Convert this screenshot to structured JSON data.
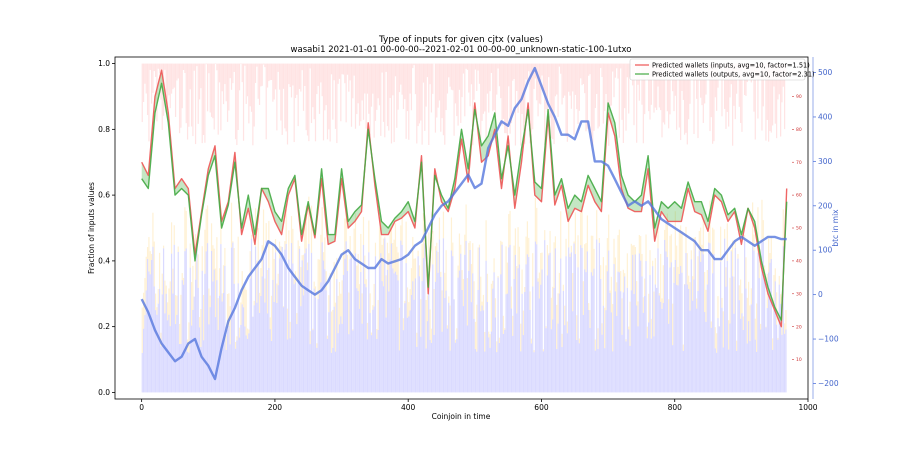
{
  "chart_data": {
    "type": "line",
    "title": "Type of inputs for given cjtx (values)",
    "subtitle": "wasabi1 2021-01-01 00-00-00--2021-02-01 00-00-00_unknown-static-100-1utxo",
    "xlabel": "Coinjoin in time",
    "ylabel": "Fraction of inputs values",
    "y2label": "btc in mix",
    "xlim": [
      -40,
      1000
    ],
    "ylim": [
      -0.02,
      1.02
    ],
    "y2lim": [
      -235,
      535
    ],
    "y3lim": [
      0,
      100
    ],
    "x_ticks": [
      0,
      200,
      400,
      600,
      800,
      1000
    ],
    "y_ticks": [
      0.0,
      0.2,
      0.4,
      0.6,
      0.8,
      1.0
    ],
    "y2_ticks": [
      -200,
      -100,
      0,
      100,
      200,
      300,
      400,
      500
    ],
    "y3_ticks": [
      10,
      20,
      30,
      40,
      50,
      60,
      70,
      80,
      90
    ],
    "legend_position": "top-right",
    "legend": [
      {
        "label": "Predicted wallets (inputs, avg=10, factor=1.51)",
        "color": "#ee5555"
      },
      {
        "label": "Predicted wallets (outputs, avg=10, factor=2.31)",
        "color": "#44aa44"
      }
    ],
    "series": [
      {
        "name": "Predicted wallets (inputs, avg=10, factor=1.51)",
        "axis": "right-inner",
        "color": "#ee5555",
        "x": [
          0,
          10,
          20,
          30,
          40,
          50,
          60,
          70,
          80,
          90,
          100,
          110,
          120,
          130,
          140,
          150,
          160,
          170,
          180,
          190,
          200,
          210,
          220,
          230,
          240,
          250,
          260,
          270,
          280,
          290,
          300,
          310,
          320,
          330,
          340,
          350,
          360,
          370,
          380,
          390,
          400,
          410,
          420,
          430,
          440,
          450,
          460,
          470,
          480,
          490,
          500,
          510,
          520,
          530,
          540,
          550,
          560,
          570,
          580,
          590,
          600,
          610,
          620,
          630,
          640,
          650,
          660,
          670,
          680,
          690,
          700,
          710,
          720,
          730,
          740,
          750,
          760,
          770,
          780,
          790,
          800,
          810,
          820,
          830,
          840,
          850,
          860,
          870,
          880,
          890,
          900,
          910,
          920,
          930,
          940,
          950,
          960,
          968
        ],
        "values": [
          70,
          66,
          90,
          98,
          85,
          62,
          65,
          62,
          42,
          55,
          68,
          75,
          52,
          58,
          73,
          48,
          56,
          45,
          62,
          58,
          52,
          48,
          60,
          65,
          46,
          57,
          47,
          65,
          45,
          46,
          65,
          50,
          52,
          55,
          82,
          63,
          48,
          48,
          52,
          53,
          55,
          50,
          72,
          30,
          68,
          58,
          55,
          62,
          77,
          64,
          88,
          70,
          72,
          80,
          62,
          78,
          56,
          70,
          88,
          60,
          58,
          84,
          57,
          63,
          52,
          56,
          55,
          63,
          58,
          55,
          85,
          78,
          62,
          56,
          55,
          55,
          68,
          46,
          55,
          52,
          52,
          52,
          62,
          55,
          54,
          49,
          60,
          58,
          52,
          55,
          45,
          56,
          50,
          38,
          30,
          25,
          20,
          62
        ]
      },
      {
        "name": "Predicted wallets (outputs, avg=10, factor=2.31)",
        "axis": "right-inner",
        "color": "#44aa44",
        "x": [
          0,
          10,
          20,
          30,
          40,
          50,
          60,
          70,
          80,
          90,
          100,
          110,
          120,
          130,
          140,
          150,
          160,
          170,
          180,
          190,
          200,
          210,
          220,
          230,
          240,
          250,
          260,
          270,
          280,
          290,
          300,
          310,
          320,
          330,
          340,
          350,
          360,
          370,
          380,
          390,
          400,
          410,
          420,
          430,
          440,
          450,
          460,
          470,
          480,
          490,
          500,
          510,
          520,
          530,
          540,
          550,
          560,
          570,
          580,
          590,
          600,
          610,
          620,
          630,
          640,
          650,
          660,
          670,
          680,
          690,
          700,
          710,
          720,
          730,
          740,
          750,
          760,
          770,
          780,
          790,
          800,
          810,
          820,
          830,
          840,
          850,
          860,
          870,
          880,
          890,
          900,
          910,
          920,
          930,
          940,
          950,
          960,
          968
        ],
        "values": [
          65,
          62,
          85,
          94,
          82,
          60,
          62,
          60,
          40,
          54,
          66,
          72,
          50,
          57,
          70,
          50,
          60,
          48,
          62,
          62,
          55,
          52,
          62,
          66,
          48,
          58,
          48,
          68,
          48,
          48,
          68,
          52,
          55,
          57,
          80,
          65,
          52,
          50,
          53,
          55,
          58,
          52,
          70,
          32,
          66,
          60,
          56,
          65,
          80,
          68,
          86,
          75,
          78,
          85,
          65,
          75,
          60,
          74,
          86,
          64,
          62,
          86,
          60,
          65,
          56,
          60,
          58,
          66,
          62,
          58,
          88,
          82,
          66,
          60,
          58,
          60,
          72,
          50,
          58,
          56,
          58,
          56,
          64,
          58,
          58,
          52,
          62,
          60,
          54,
          56,
          48,
          56,
          52,
          40,
          32,
          26,
          22,
          58
        ]
      },
      {
        "name": "btc in mix",
        "axis": "right",
        "color": "#5577dd",
        "x": [
          0,
          10,
          20,
          30,
          40,
          50,
          60,
          70,
          80,
          90,
          100,
          110,
          120,
          130,
          140,
          150,
          160,
          170,
          180,
          190,
          200,
          210,
          220,
          230,
          240,
          250,
          260,
          270,
          280,
          290,
          300,
          310,
          320,
          330,
          340,
          350,
          360,
          370,
          380,
          390,
          400,
          410,
          420,
          430,
          440,
          450,
          460,
          470,
          480,
          490,
          500,
          510,
          520,
          530,
          540,
          550,
          560,
          570,
          580,
          590,
          600,
          610,
          620,
          630,
          640,
          650,
          660,
          670,
          680,
          690,
          700,
          710,
          720,
          730,
          740,
          750,
          760,
          770,
          780,
          790,
          800,
          810,
          820,
          830,
          840,
          850,
          860,
          870,
          880,
          890,
          900,
          910,
          920,
          930,
          940,
          950,
          960,
          968
        ],
        "values": [
          -10,
          -40,
          -80,
          -110,
          -130,
          -150,
          -140,
          -110,
          -100,
          -140,
          -160,
          -190,
          -120,
          -60,
          -30,
          10,
          40,
          60,
          80,
          120,
          110,
          90,
          60,
          40,
          20,
          10,
          0,
          10,
          30,
          60,
          90,
          100,
          80,
          70,
          60,
          60,
          80,
          70,
          75,
          80,
          90,
          110,
          120,
          150,
          180,
          200,
          210,
          230,
          250,
          270,
          240,
          250,
          330,
          360,
          390,
          380,
          420,
          440,
          480,
          510,
          470,
          430,
          400,
          360,
          360,
          350,
          390,
          390,
          300,
          300,
          290,
          260,
          230,
          200,
          210,
          200,
          210,
          190,
          170,
          160,
          150,
          140,
          130,
          120,
          100,
          100,
          80,
          80,
          100,
          120,
          130,
          120,
          110,
          120,
          130,
          130,
          125,
          125
        ]
      }
    ]
  }
}
